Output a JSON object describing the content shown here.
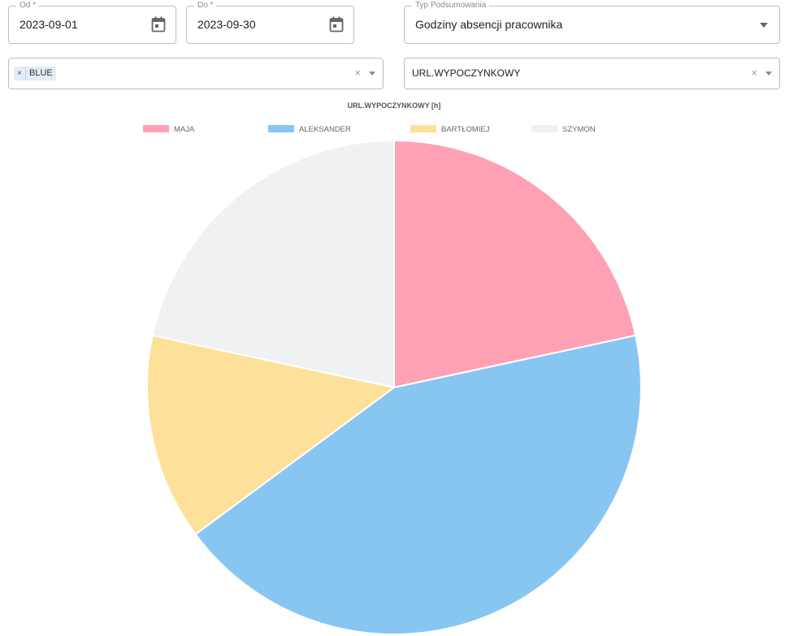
{
  "filters": {
    "from": {
      "label": "Od *",
      "value": "2023-09-01"
    },
    "to": {
      "label": "Do *",
      "value": "2023-09-30"
    },
    "summary_type": {
      "label": "Typ Podsumowania",
      "value": "Godziny absencji pracownika"
    },
    "team": {
      "chips": [
        "BLUE"
      ],
      "chip_remove": "×",
      "clear": "×"
    },
    "absence_type": {
      "value": "URL.WYPOCZYNKOWY",
      "clear": "×"
    }
  },
  "icons": {
    "calendar": "calendar-icon",
    "dropdown": "chevron-down-icon",
    "clear": "close-icon"
  },
  "chart_data": {
    "type": "pie",
    "title": "URL.WYPOCZYNKOWY [h]",
    "legend_position": "top",
    "categories": [
      "MAJA",
      "ALEKSANDER",
      "BARTŁOMIEJ",
      "SZYMON"
    ],
    "values": [
      16,
      32,
      10,
      16
    ],
    "colors": [
      "#ffa1b4",
      "#88c6f2",
      "#fde09a",
      "#f0f1f3"
    ]
  }
}
